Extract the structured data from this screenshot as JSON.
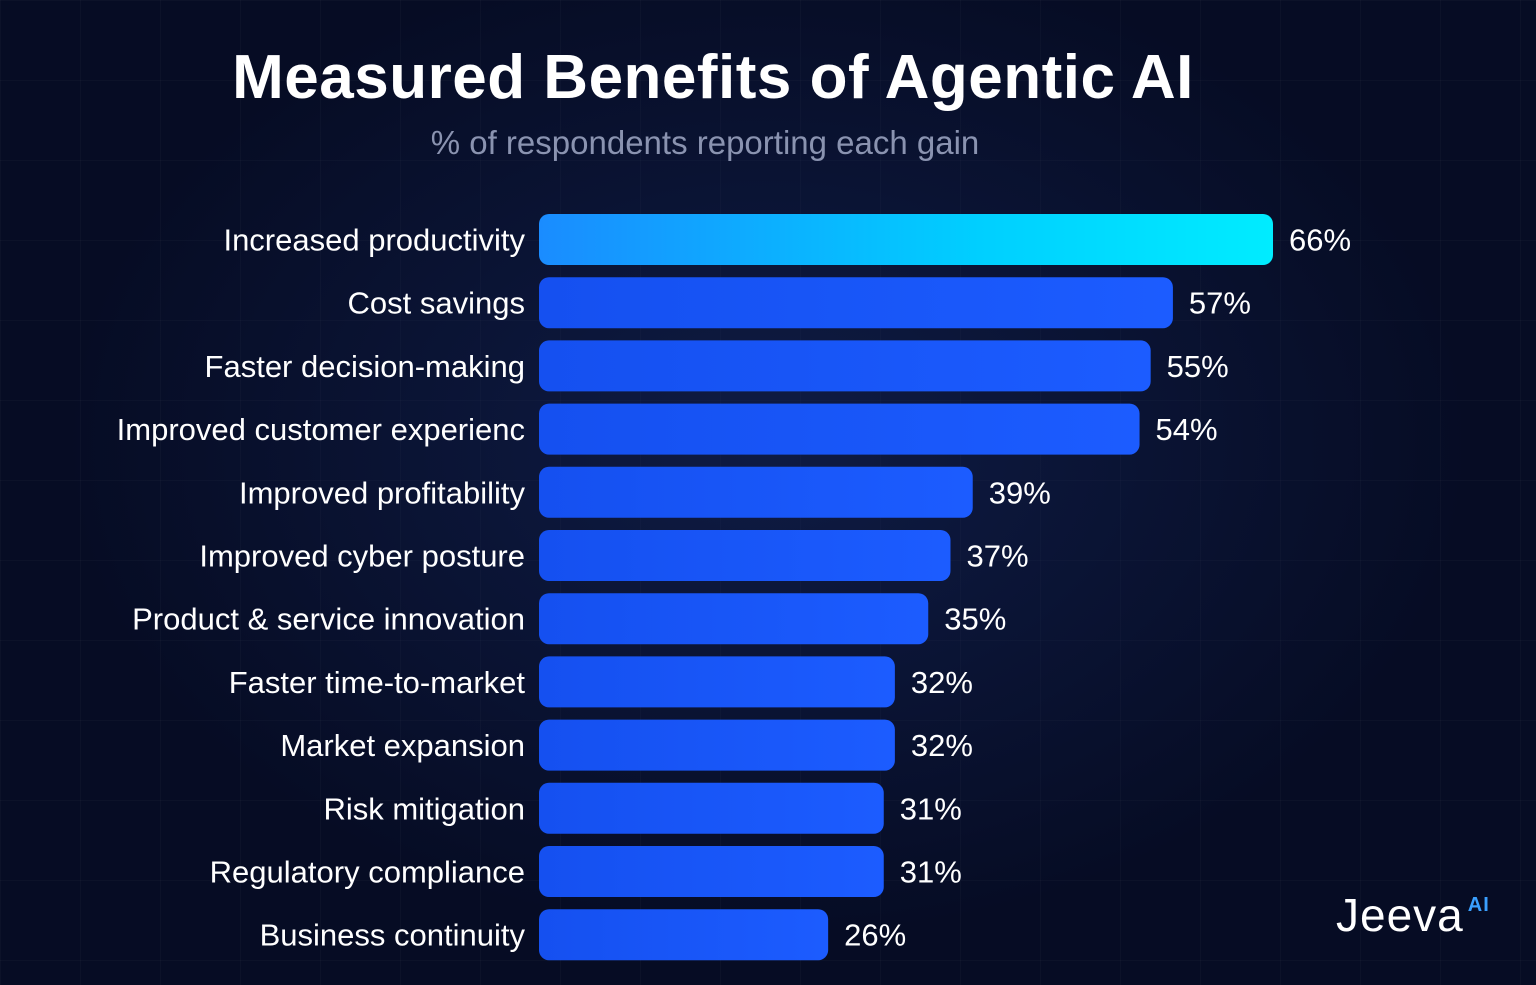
{
  "chart_data": {
    "type": "bar",
    "orientation": "horizontal",
    "title": "Measured Benefits of Agentic AI",
    "subtitle": "% of respondents reporting each gain",
    "categories": [
      "Increased productivity",
      "Cost savings",
      "Faster decision-making",
      "Improved customer experienc",
      "Improved profitability",
      "Improved cyber posture",
      "Product & service innovation",
      "Faster time-to-market",
      "Market expansion",
      "Risk mitigation",
      "Regulatory compliance",
      "Business continuity"
    ],
    "values": [
      66,
      57,
      55,
      54,
      39,
      37,
      35,
      32,
      32,
      31,
      31,
      26
    ],
    "value_labels": [
      "66%",
      "57%",
      "55%",
      "54%",
      "39%",
      "37%",
      "35%",
      "32%",
      "32%",
      "31%",
      "31%",
      "26%"
    ],
    "xlim": [
      0,
      66
    ],
    "grid": false,
    "colors": {
      "bar": "#1756f5",
      "bar_highlight": "#00e8ff",
      "text": "#ffffff",
      "subtitle": "#8a93b0"
    }
  },
  "brand": {
    "name": "Jeeva",
    "suffix": "AI"
  }
}
